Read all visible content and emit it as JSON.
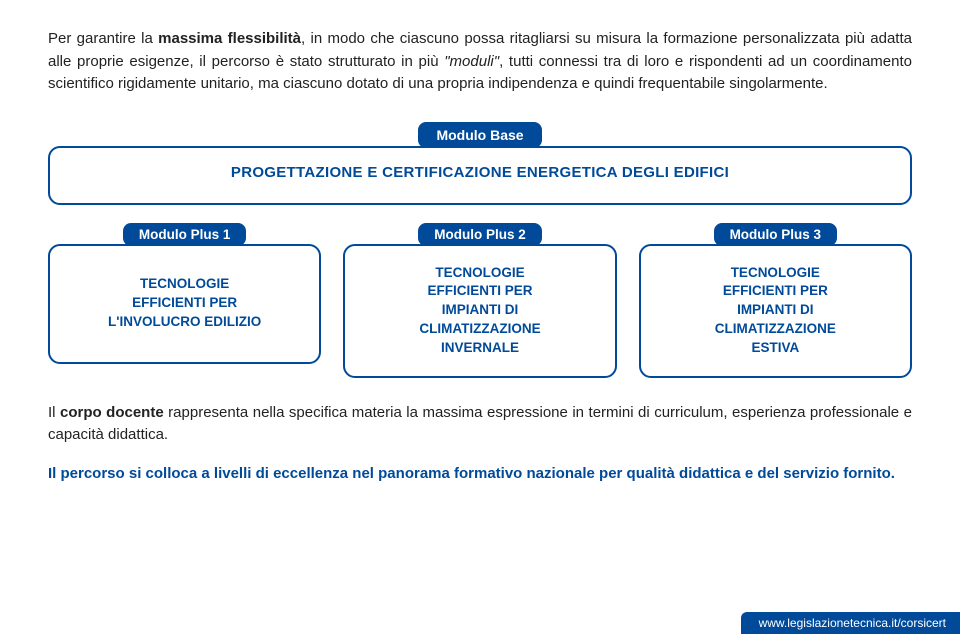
{
  "intro": {
    "p1a": "Per garantire la ",
    "p1b": "massima flessibilità",
    "p1c": ", in modo che ciascuno possa ritagliarsi su misura la formazione personalizzata più adatta alle proprie esigenze, il percorso è stato strutturato in più ",
    "p1d": "\"moduli\"",
    "p1e": ", tutti connessi tra di loro e rispondenti ad un coordinamento scientifico rigidamente unitario, ma ciascuno dotato di una propria indipendenza e quindi frequentabile singolarmente."
  },
  "diagram": {
    "base_tab": "Modulo Base",
    "base_text": "PROGETTAZIONE E CERTIFICAZIONE ENERGETICA DEGLI EDIFICI",
    "plus": [
      {
        "tab": "Modulo Plus 1",
        "text": "TECNOLOGIE\nEFFICIENTI PER\nL'INVOLUCRO EDILIZIO"
      },
      {
        "tab": "Modulo Plus 2",
        "text": "TECNOLOGIE\nEFFICIENTI PER\nIMPIANTI DI\nCLIMATIZZAZIONE\nINVERNALE"
      },
      {
        "tab": "Modulo Plus 3",
        "text": "TECNOLOGIE\nEFFICIENTI PER\nIMPIANTI DI\nCLIMATIZZAZIONE\nESTIVA"
      }
    ],
    "border_color": "#004a99",
    "tab_bg": "#004a99",
    "tab_fg": "#ffffff"
  },
  "docente": {
    "a": "Il ",
    "b": "corpo docente",
    "c": " rappresenta nella specifica materia la massima espressione in termini di curriculum, esperienza professionale e capacità didattica."
  },
  "closing": "Il percorso si colloca a livelli di eccellenza nel panorama formativo nazionale per qualità didattica e del servizio fornito.",
  "footer": "www.legislazionetecnica.it/corsicert",
  "colors": {
    "brand": "#004a99",
    "text": "#222222",
    "bg": "#ffffff"
  }
}
